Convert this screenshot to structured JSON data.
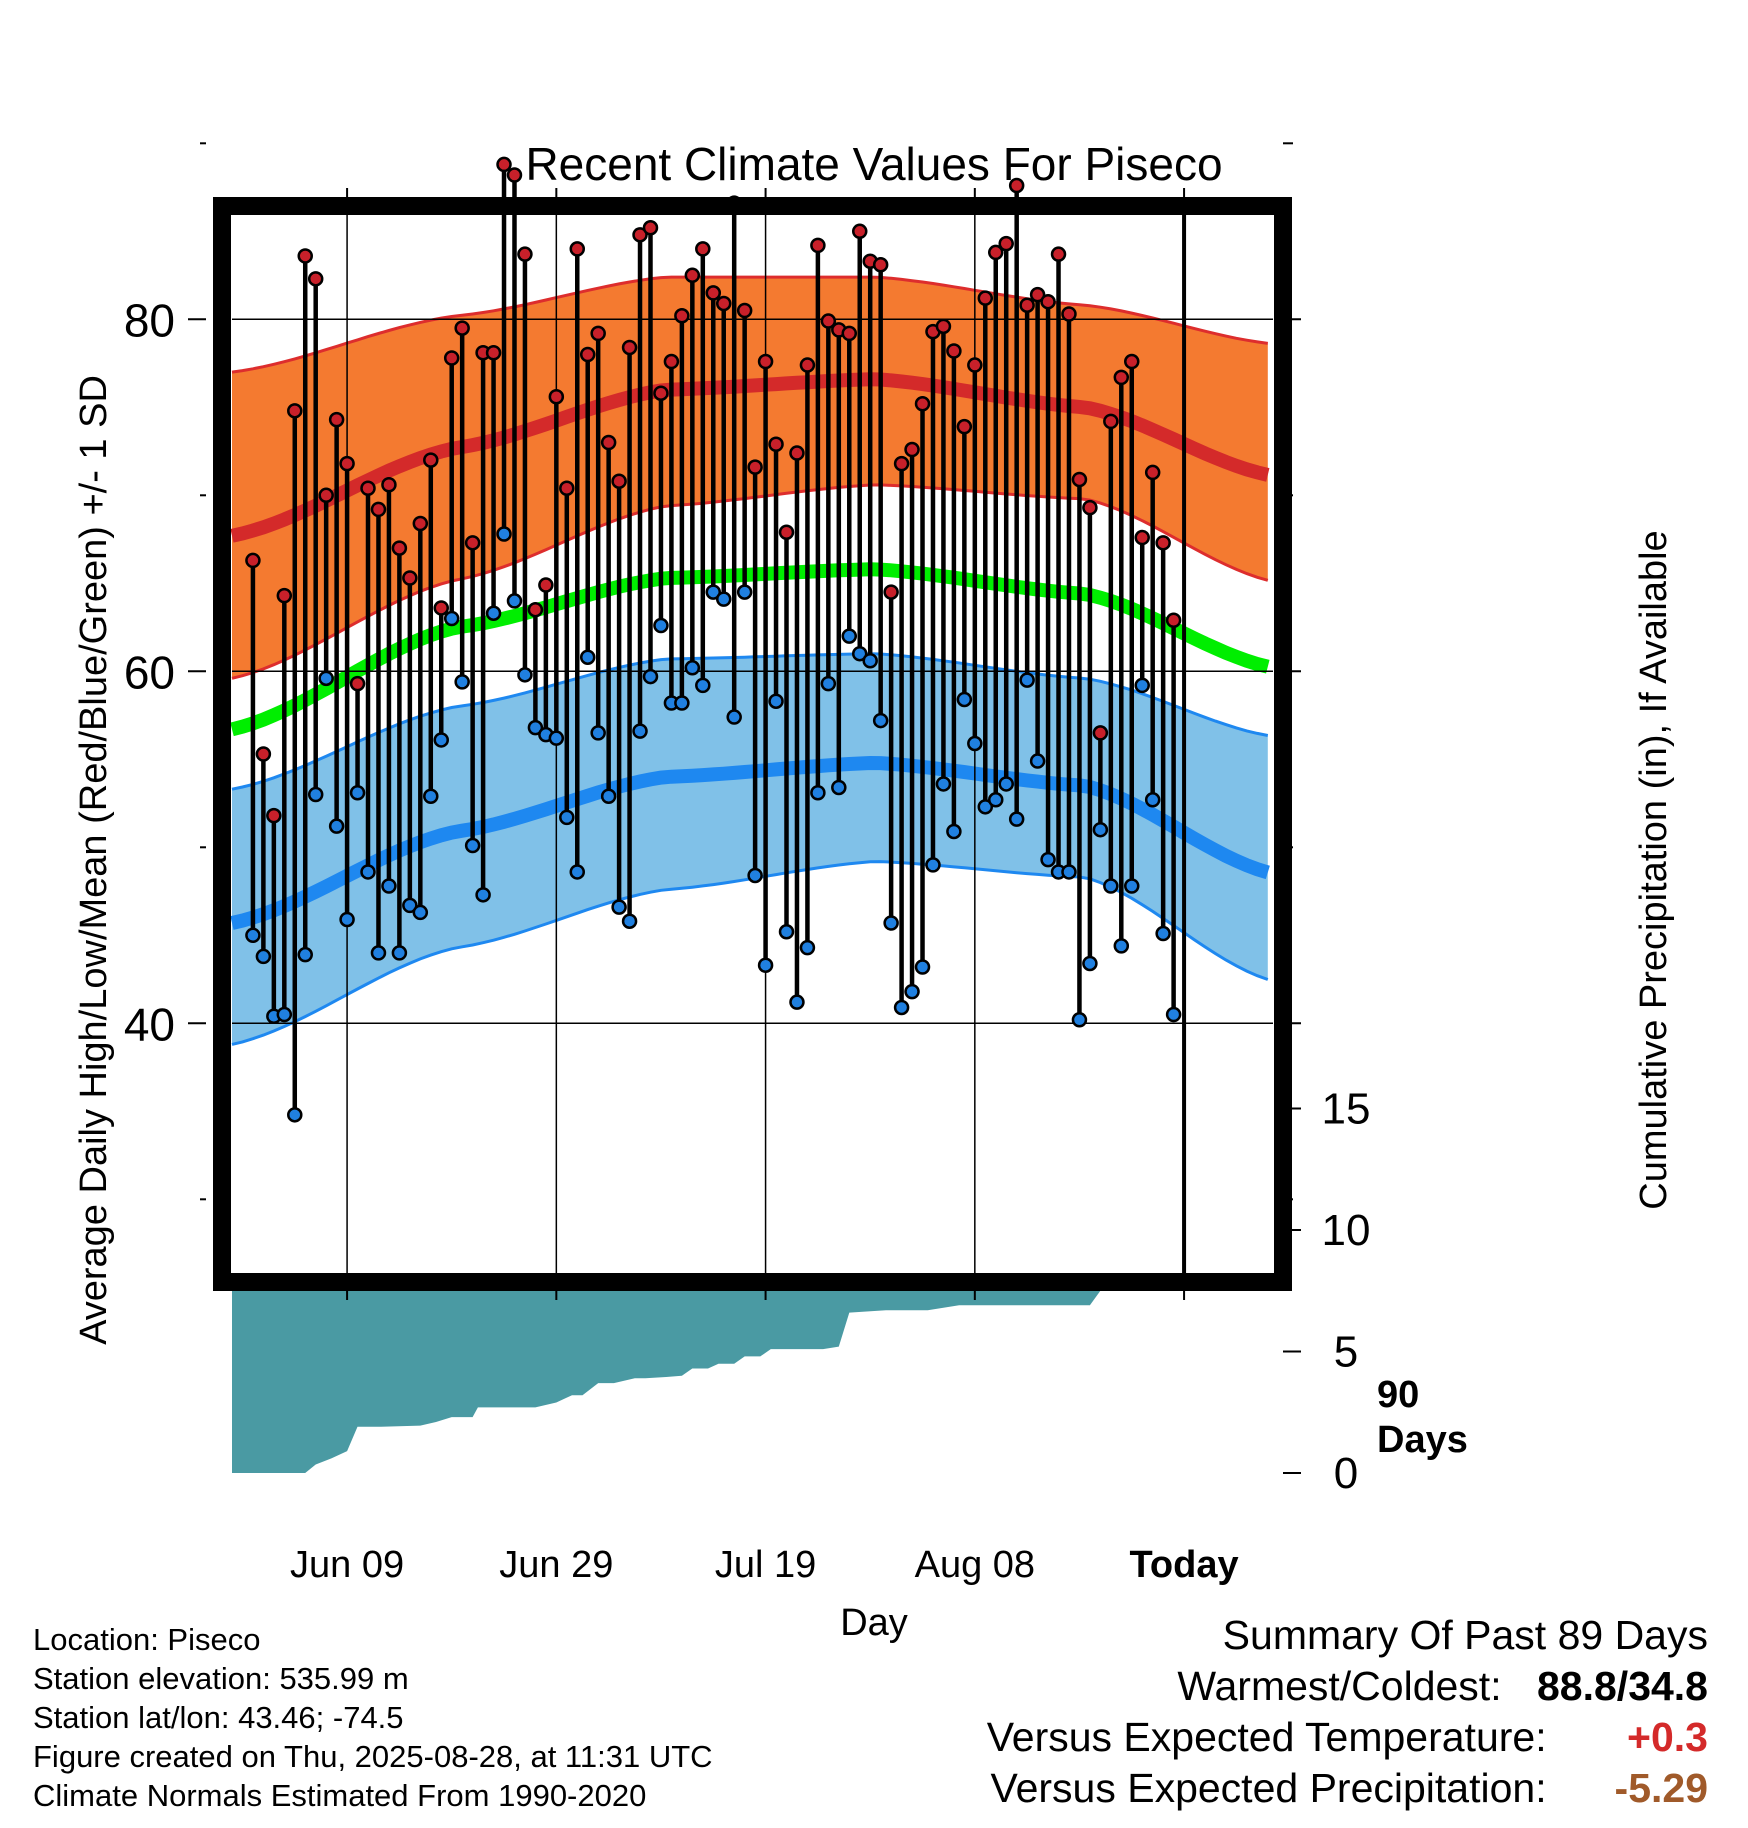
{
  "chart_data": {
    "type": "line",
    "title": "Recent Climate Values For Piseco",
    "xlabel": "Day",
    "ylabel": "Average Daily High/Low/Mean (Red/Blue/Green) +/- 1 SD",
    "y2label": "Cumulative Precipitation (in), If Available",
    "x_tick_labels": [
      "Jun 09",
      "Jun 29",
      "Jul 19",
      "Aug 08",
      "Today"
    ],
    "x_tick_days": [
      9.5,
      29.5,
      49.5,
      69.5,
      89.5
    ],
    "xlim": [
      -1.5,
      98
    ],
    "ylim": [
      25,
      94
    ],
    "y_ticks": [
      40,
      60,
      80
    ],
    "y2_ticks": [
      0,
      5,
      10,
      15
    ],
    "y2lim": [
      0,
      15.3
    ],
    "grid": true,
    "today_marker_label": [
      "90",
      "Days"
    ],
    "colors": {
      "high_band": "#f47a30",
      "high_mean": "#d42a2a",
      "low_band": "#80c1e8",
      "low_mean": "#1e88f0",
      "mean_line": "#00ee00",
      "precip": "#4a9aa3",
      "high_dot": "#c8202a",
      "low_dot": "#2080e0"
    },
    "normals": {
      "high_mean": {
        "day": [
          -1.5,
          20,
          40,
          60,
          80,
          98
        ],
        "value": [
          67.7,
          72.7,
          76.0,
          76.6,
          75.0,
          71.1
        ]
      },
      "high_upper": {
        "day": [
          -1.5,
          20,
          40,
          60,
          80,
          98
        ],
        "value": [
          77.0,
          80.2,
          82.4,
          82.4,
          80.8,
          78.6
        ]
      },
      "high_lower": {
        "day": [
          -1.5,
          20,
          40,
          60,
          80,
          98
        ],
        "value": [
          59.6,
          65.2,
          69.4,
          70.6,
          69.8,
          65.1
        ]
      },
      "low_mean": {
        "day": [
          -1.5,
          20,
          40,
          60,
          80,
          98
        ],
        "value": [
          45.7,
          50.9,
          54.0,
          54.8,
          53.5,
          48.5
        ]
      },
      "low_upper": {
        "day": [
          -1.5,
          20,
          40,
          60,
          80,
          98
        ],
        "value": [
          53.3,
          58.0,
          60.7,
          61.0,
          59.6,
          56.3
        ]
      },
      "low_lower": {
        "day": [
          -1.5,
          20,
          40,
          60,
          80,
          98
        ],
        "value": [
          38.8,
          44.3,
          47.6,
          49.2,
          48.3,
          42.4
        ]
      },
      "mean": {
        "day": [
          -1.5,
          20,
          40,
          60,
          80,
          98
        ],
        "value": [
          56.7,
          62.5,
          65.3,
          65.8,
          64.4,
          60.2
        ]
      }
    },
    "series": [
      {
        "name": "High",
        "values": [
          66.3,
          55.3,
          51.8,
          64.3,
          74.8,
          83.6,
          82.3,
          70.0,
          74.3,
          71.8,
          59.3,
          70.4,
          69.2,
          70.6,
          67.0,
          65.3,
          68.4,
          72.0,
          63.6,
          77.8,
          79.5,
          67.3,
          78.1,
          78.1,
          88.8,
          88.2,
          83.7,
          63.5,
          64.9,
          75.6,
          70.4,
          84.0,
          78.0,
          79.2,
          73.0,
          70.8,
          78.4,
          84.8,
          85.2,
          75.8,
          77.6,
          80.2,
          82.5,
          84.0,
          81.5,
          80.9,
          86.6,
          80.5,
          71.6,
          77.6,
          72.9,
          67.9,
          72.4,
          77.4,
          84.2,
          79.9,
          79.4,
          79.2,
          85.0,
          83.3,
          83.1,
          64.5,
          71.8,
          72.6,
          75.2,
          79.3,
          79.6,
          78.2,
          73.9,
          77.4,
          81.2,
          83.8,
          84.3,
          87.6,
          80.8,
          81.4,
          81.0,
          83.7,
          80.3,
          70.9,
          69.3,
          56.5,
          74.2,
          76.7,
          77.6,
          67.6,
          71.3,
          67.3,
          62.9
        ]
      },
      {
        "name": "Low",
        "values": [
          45.0,
          43.8,
          40.4,
          40.5,
          34.8,
          43.9,
          53.0,
          59.6,
          51.2,
          45.9,
          53.1,
          48.6,
          44.0,
          47.8,
          44.0,
          46.7,
          46.3,
          52.9,
          56.1,
          63.0,
          59.4,
          50.1,
          47.3,
          63.3,
          67.8,
          64.0,
          59.8,
          56.8,
          56.4,
          56.2,
          51.7,
          48.6,
          60.8,
          56.5,
          52.9,
          46.6,
          45.8,
          56.6,
          59.7,
          62.6,
          58.2,
          58.2,
          60.2,
          59.2,
          64.5,
          64.1,
          57.4,
          64.5,
          48.4,
          43.3,
          58.3,
          45.2,
          41.2,
          44.3,
          53.1,
          59.3,
          53.4,
          62.0,
          61.0,
          60.6,
          57.2,
          45.7,
          40.9,
          41.8,
          43.2,
          49.0,
          53.6,
          50.9,
          58.4,
          55.9,
          52.3,
          52.7,
          53.6,
          51.6,
          59.5,
          54.9,
          49.3,
          48.6,
          48.6,
          40.2,
          43.4,
          51.0,
          47.8,
          44.4,
          47.8,
          59.2,
          52.7,
          45.1,
          40.5
        ]
      }
    ],
    "precipitation": {
      "label": "Cumulative Precipitation (in)",
      "day": [
        -1.5,
        5.5,
        6.5,
        8.0,
        9.5,
        10.5,
        12.5,
        16.5,
        18.0,
        19.5,
        21.5,
        22.0,
        24.5,
        27.5,
        29.5,
        31.0,
        32.0,
        33.5,
        35.0,
        37.0,
        38.0,
        40.0,
        41.5,
        42.5,
        44.0,
        45.0,
        46.5,
        47.5,
        49.0,
        50.0,
        51.0,
        52.5,
        55.0,
        56.5,
        57.5,
        61.0,
        65.0,
        66.5,
        68.0,
        70.0,
        80.5,
        81.5,
        85.0,
        86.0,
        89.5,
        98.0
      ],
      "value": [
        0.0,
        0.0,
        0.35,
        0.6,
        0.9,
        1.9,
        1.9,
        1.95,
        2.1,
        2.3,
        2.3,
        2.7,
        2.7,
        2.7,
        2.9,
        3.2,
        3.2,
        3.7,
        3.7,
        3.9,
        3.9,
        3.95,
        4.0,
        4.3,
        4.3,
        4.5,
        4.5,
        4.8,
        4.8,
        5.1,
        5.1,
        5.1,
        5.1,
        5.2,
        6.6,
        6.7,
        6.7,
        6.8,
        6.9,
        6.9,
        6.9,
        7.5,
        7.5,
        7.9,
        7.9,
        7.9
      ]
    }
  },
  "station_info": [
    "Location: Piseco",
    "Station elevation: 535.99 m",
    "Station lat/lon: 43.46; -74.5",
    "Figure created on Thu, 2025-08-28, at 11:31 UTC",
    "Climate Normals Estimated From 1990-2020"
  ],
  "summary": {
    "title": "Summary Of Past 89 Days",
    "warmest_coldest_label": "Warmest/Coldest:",
    "warmest_coldest_value": "88.8/34.8",
    "temp_label": "Versus Expected Temperature:",
    "temp_value": "+0.3",
    "temp_color": "#d42a2a",
    "precip_label": "Versus Expected Precipitation:",
    "precip_value": "-5.29",
    "precip_color": "#a05a2a"
  }
}
